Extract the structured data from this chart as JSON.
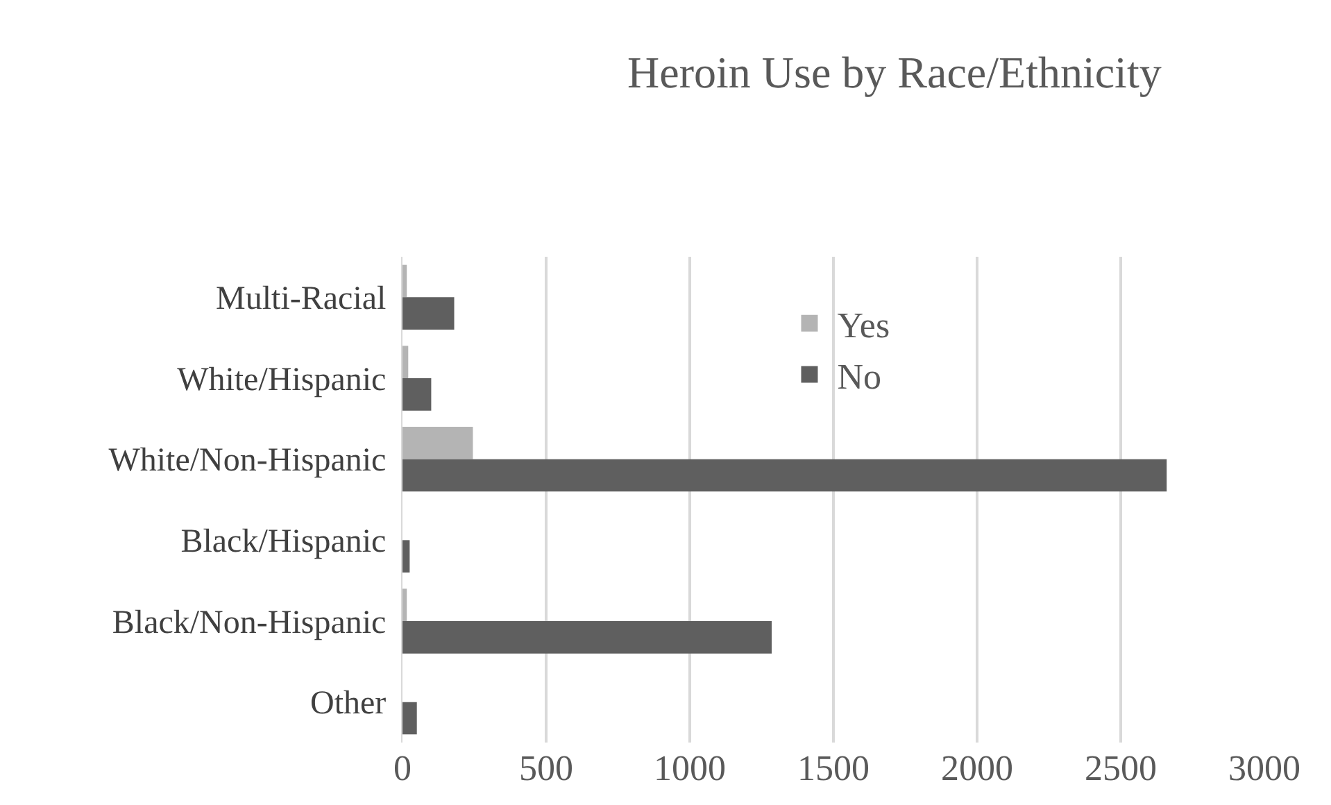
{
  "chart_data": {
    "type": "bar",
    "orientation": "horizontal",
    "title": "Heroin Use by Race/Ethnicity",
    "categories": [
      "Multi-Racial",
      "White/Hispanic",
      "White/Non-Hispanic",
      "Black/Hispanic",
      "Black/Non-Hispanic",
      "Other"
    ],
    "series": [
      {
        "name": "Yes",
        "color": "#b4b4b4",
        "values": [
          15,
          20,
          245,
          null,
          15,
          null
        ]
      },
      {
        "name": "No",
        "color": "#5f5f5f",
        "values": [
          180,
          100,
          2660,
          25,
          1285,
          50
        ]
      }
    ],
    "xlim": [
      0,
      3000
    ],
    "xticks": [
      0,
      500,
      1000,
      1500,
      2000,
      2500,
      3000
    ],
    "grid": "x",
    "legend": "top right"
  }
}
